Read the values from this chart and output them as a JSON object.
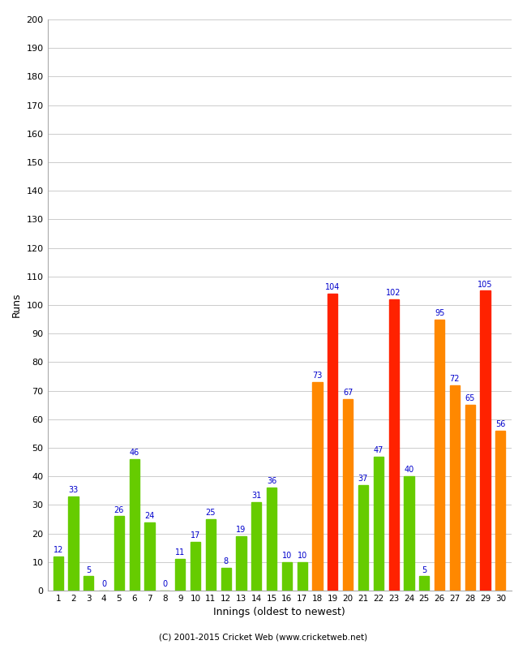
{
  "xlabel": "Innings (oldest to newest)",
  "ylabel": "Runs",
  "ylim": [
    0,
    200
  ],
  "yticks": [
    0,
    10,
    20,
    30,
    40,
    50,
    60,
    70,
    80,
    90,
    100,
    110,
    120,
    130,
    140,
    150,
    160,
    170,
    180,
    190,
    200
  ],
  "values": [
    12,
    33,
    5,
    0,
    26,
    46,
    24,
    0,
    11,
    17,
    25,
    8,
    19,
    31,
    36,
    10,
    10,
    73,
    104,
    67,
    37,
    47,
    102,
    40,
    5,
    95,
    72,
    65,
    105,
    56
  ],
  "colors": [
    "#66cc00",
    "#66cc00",
    "#66cc00",
    "#66cc00",
    "#66cc00",
    "#66cc00",
    "#66cc00",
    "#66cc00",
    "#66cc00",
    "#66cc00",
    "#66cc00",
    "#66cc00",
    "#66cc00",
    "#66cc00",
    "#66cc00",
    "#66cc00",
    "#66cc00",
    "#ff8800",
    "#ff2200",
    "#ff8800",
    "#66cc00",
    "#66cc00",
    "#ff2200",
    "#66cc00",
    "#66cc00",
    "#ff8800",
    "#ff8800",
    "#ff8800",
    "#ff2200",
    "#ff8800"
  ],
  "label_color": "#0000cc",
  "background_color": "#ffffff",
  "grid_color": "#cccccc",
  "footer": "(C) 2001-2015 Cricket Web (www.cricketweb.net)",
  "bar_width": 0.65
}
